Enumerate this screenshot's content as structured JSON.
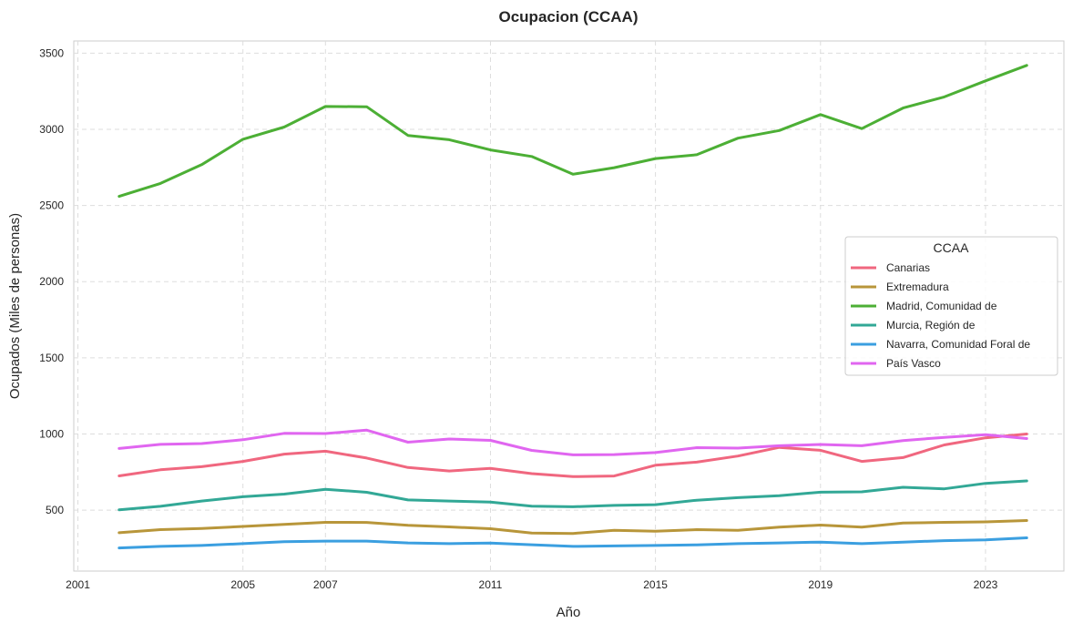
{
  "chart_data": {
    "type": "line",
    "title": "Ocupacion (CCAA)",
    "xlabel": "Año",
    "ylabel": "Ocupados (Miles de personas)",
    "xlim": [
      2000.9,
      2024.9
    ],
    "ylim": [
      100,
      3580
    ],
    "x_ticks": [
      2001,
      2005,
      2007,
      2011,
      2015,
      2019,
      2023
    ],
    "y_ticks": [
      500,
      1000,
      1500,
      2000,
      2500,
      3000,
      3500
    ],
    "grid": true,
    "legend": {
      "title": "CCAA",
      "placement": "center-right"
    },
    "x": [
      2002,
      2003,
      2004,
      2005,
      2006,
      2007,
      2008,
      2009,
      2010,
      2011,
      2012,
      2013,
      2014,
      2015,
      2016,
      2017,
      2018,
      2019,
      2020,
      2021,
      2022,
      2023,
      2024
    ],
    "series": [
      {
        "name": "Canarias",
        "color": "#f0677f",
        "values": [
          725,
          765,
          785,
          820,
          868,
          887,
          842,
          780,
          757,
          774,
          740,
          720,
          724,
          795,
          815,
          855,
          912,
          893,
          820,
          845,
          928,
          975,
          1000
        ]
      },
      {
        "name": "Extremadura",
        "color": "#b8963a",
        "values": [
          352,
          372,
          380,
          393,
          407,
          420,
          419,
          400,
          390,
          378,
          350,
          347,
          367,
          362,
          372,
          368,
          389,
          402,
          388,
          415,
          420,
          423,
          432
        ]
      },
      {
        "name": "Madrid, Comunidad de",
        "color": "#4caf35",
        "values": [
          2560,
          2645,
          2768,
          2935,
          3015,
          3150,
          3148,
          2960,
          2932,
          2865,
          2822,
          2705,
          2748,
          2808,
          2833,
          2942,
          2992,
          3097,
          3005,
          3140,
          3213,
          3318,
          3420
        ]
      },
      {
        "name": "Murcia, Región de",
        "color": "#32a896",
        "values": [
          502,
          525,
          560,
          588,
          605,
          637,
          617,
          567,
          560,
          553,
          526,
          522,
          531,
          536,
          565,
          582,
          595,
          618,
          620,
          650,
          640,
          676,
          692
        ]
      },
      {
        "name": "Navarra, Comunidad Foral de",
        "color": "#3b9fe0",
        "values": [
          252,
          262,
          268,
          280,
          293,
          297,
          297,
          285,
          280,
          284,
          273,
          262,
          265,
          268,
          272,
          280,
          285,
          290,
          280,
          290,
          300,
          305,
          318
        ]
      },
      {
        "name": "País Vasco",
        "color": "#e066f0",
        "values": [
          905,
          932,
          937,
          962,
          1004,
          1003,
          1025,
          946,
          967,
          958,
          892,
          863,
          865,
          878,
          910,
          907,
          923,
          931,
          923,
          957,
          978,
          995,
          970
        ]
      }
    ]
  }
}
